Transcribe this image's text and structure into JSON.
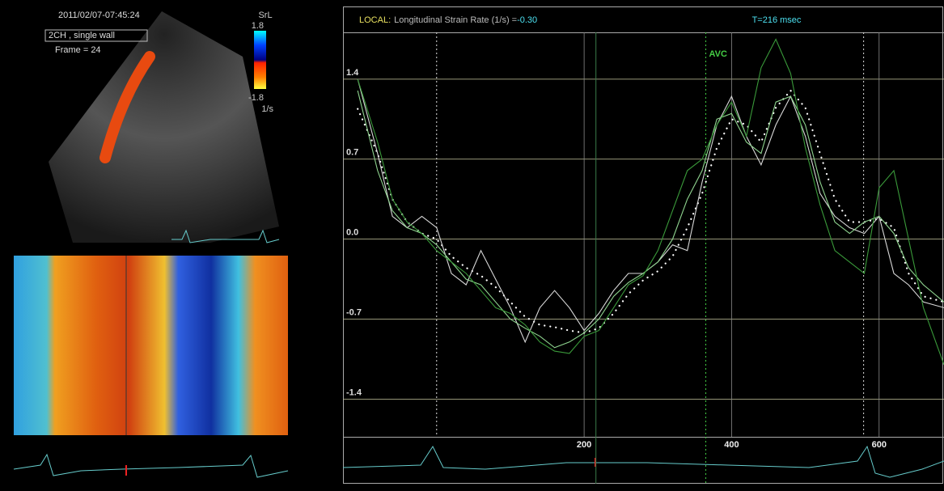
{
  "echo_panel": {
    "timestamp": "2011/02/07-07:45:24",
    "view_label": "2CH , single wall",
    "frame": "Frame = 24",
    "colorbar": {
      "title": "SrL",
      "max": "1.8",
      "min": "-1.8",
      "unit": "1/s"
    }
  },
  "header": {
    "mode": "LOCAL:",
    "measure": "Longitudinal Strain Rate (1/s) =",
    "value": "-0.30",
    "time": "T=216 msec"
  },
  "chart_data": {
    "type": "line",
    "x": [
      -107,
      -80,
      -60,
      -40,
      -20,
      0,
      20,
      40,
      60,
      80,
      100,
      120,
      140,
      160,
      180,
      200,
      220,
      240,
      260,
      280,
      300,
      320,
      340,
      360,
      380,
      400,
      420,
      440,
      460,
      480,
      500,
      520,
      540,
      560,
      580,
      600,
      620,
      640,
      660,
      688
    ],
    "series": [
      {
        "color": "#ffffff",
        "style": "dotted",
        "values": [
          1.14,
          0.75,
          0.35,
          0.15,
          0.05,
          0.0,
          -0.15,
          -0.25,
          -0.32,
          -0.42,
          -0.55,
          -0.68,
          -0.75,
          -0.77,
          -0.8,
          -0.82,
          -0.78,
          -0.65,
          -0.48,
          -0.36,
          -0.28,
          -0.15,
          0.1,
          0.4,
          0.8,
          1.05,
          1.0,
          0.85,
          1.15,
          1.3,
          1.15,
          0.75,
          0.35,
          0.15,
          0.15,
          0.18,
          0.1,
          -0.3,
          -0.5,
          -0.55
        ]
      },
      {
        "color": "#d8d8d8",
        "style": "solid",
        "values": [
          1.4,
          0.75,
          0.2,
          0.1,
          0.2,
          0.1,
          -0.3,
          -0.4,
          -0.1,
          -0.35,
          -0.6,
          -0.9,
          -0.6,
          -0.45,
          -0.6,
          -0.8,
          -0.65,
          -0.45,
          -0.3,
          -0.3,
          -0.2,
          -0.05,
          -0.1,
          0.5,
          1.0,
          1.25,
          0.9,
          0.65,
          1.0,
          1.25,
          0.9,
          0.4,
          0.2,
          0.1,
          0.05,
          0.2,
          -0.3,
          -0.4,
          -0.55,
          -0.6
        ]
      },
      {
        "color": "#8fd48f",
        "style": "solid",
        "values": [
          1.3,
          0.6,
          0.25,
          0.1,
          0.05,
          -0.05,
          -0.2,
          -0.35,
          -0.4,
          -0.55,
          -0.7,
          -0.78,
          -0.85,
          -0.95,
          -0.9,
          -0.82,
          -0.7,
          -0.5,
          -0.38,
          -0.3,
          -0.2,
          0.0,
          0.35,
          0.6,
          1.05,
          1.1,
          0.85,
          0.75,
          1.2,
          1.25,
          1.0,
          0.5,
          0.15,
          0.05,
          0.15,
          0.2,
          0.05,
          -0.25,
          -0.4,
          -0.55
        ]
      },
      {
        "color": "#3a9a3a",
        "style": "solid",
        "values": [
          1.4,
          0.85,
          0.35,
          0.15,
          0.05,
          -0.1,
          -0.2,
          -0.3,
          -0.45,
          -0.6,
          -0.65,
          -0.75,
          -0.9,
          -0.98,
          -1.0,
          -0.85,
          -0.8,
          -0.6,
          -0.4,
          -0.32,
          -0.1,
          0.25,
          0.6,
          0.7,
          1.0,
          1.2,
          0.9,
          1.5,
          1.75,
          1.45,
          0.8,
          0.3,
          -0.1,
          -0.2,
          -0.3,
          0.45,
          0.6,
          0.0,
          -0.6,
          -1.1
        ]
      }
    ],
    "xlim": [
      -127,
      688
    ],
    "xticks": [
      200,
      400,
      600
    ],
    "ylim": [
      -1.73,
      1.81
    ],
    "yticks": [
      -1.4,
      -0.7,
      {
        "value": 0,
        "label": "0.0"
      },
      0.7,
      1.4
    ],
    "grid": true,
    "event_x": [
      0,
      579
    ],
    "avc": {
      "x": 365,
      "label": "AVC",
      "color": "#44cc44"
    },
    "cursor_x": 216
  }
}
